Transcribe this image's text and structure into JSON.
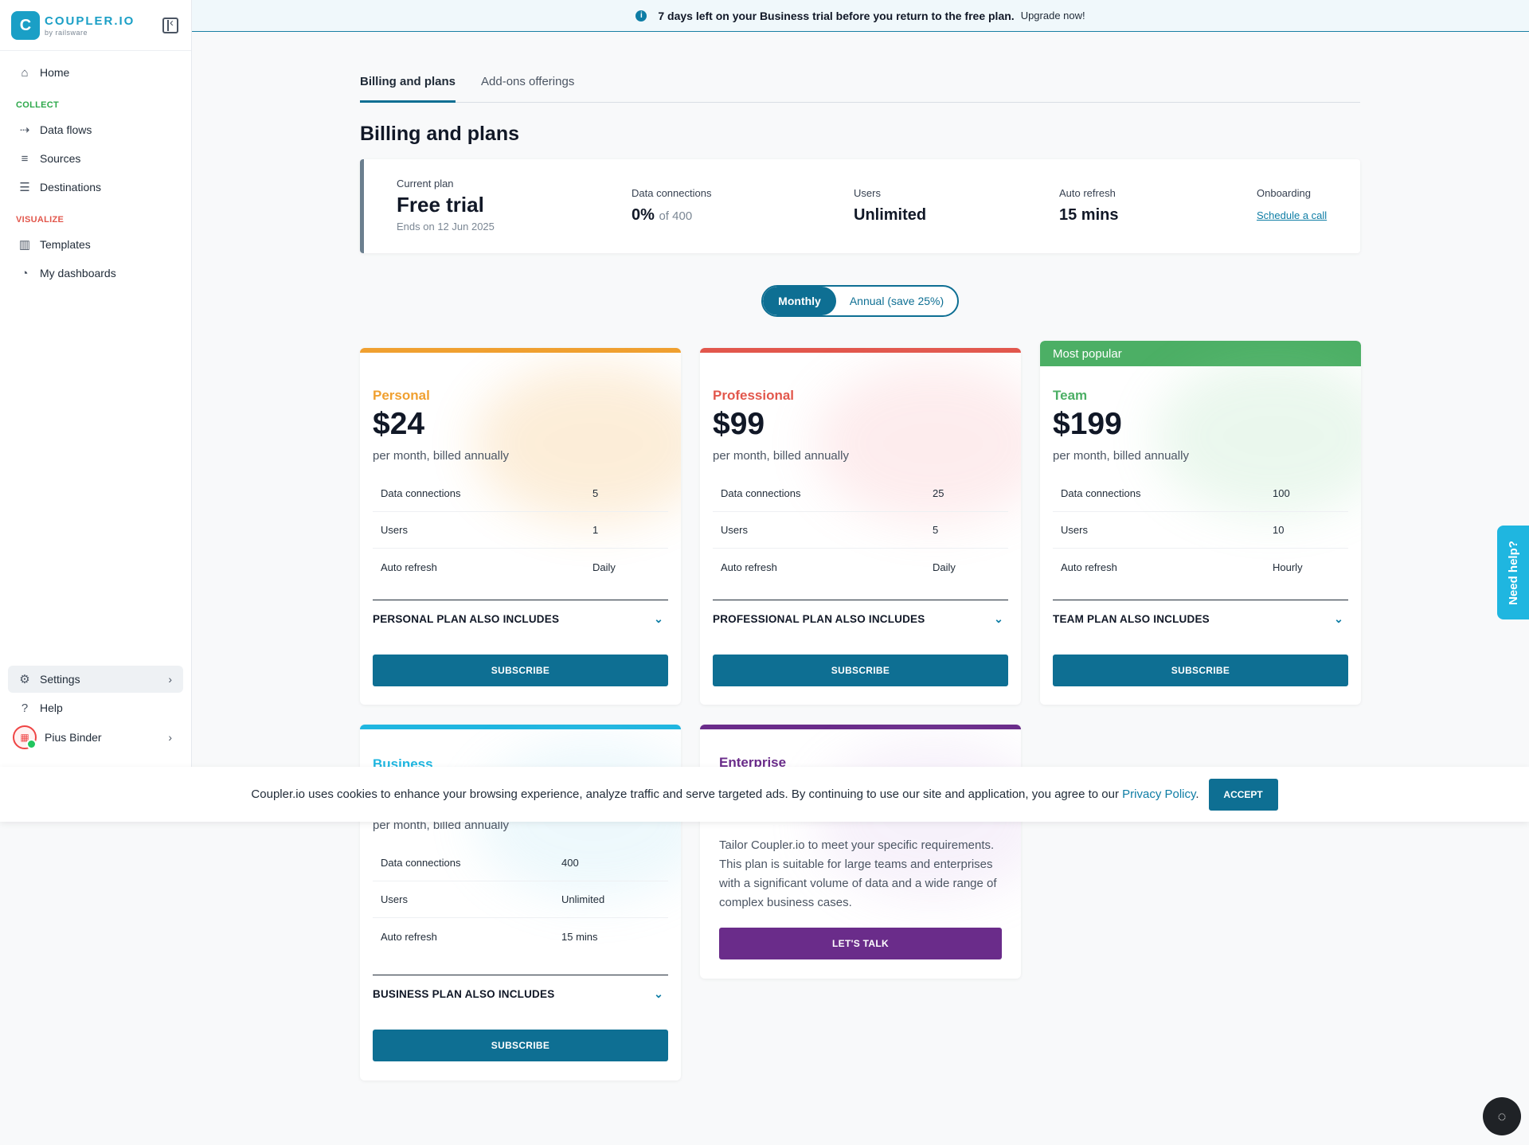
{
  "brand": {
    "logo_letter": "C",
    "name": "COUPLER.IO",
    "by": "by railsware"
  },
  "banner": {
    "icon": "info-icon",
    "message": "7 days left on your Business trial before you return to the free plan.",
    "cta": "Upgrade now!"
  },
  "sidebar": {
    "home": "Home",
    "collect_label": "COLLECT",
    "collect_items": [
      "Data flows",
      "Sources",
      "Destinations"
    ],
    "visualize_label": "VISUALIZE",
    "visualize_items": [
      "Templates",
      "My dashboards"
    ],
    "settings": "Settings",
    "help": "Help",
    "user": "Pius Binder"
  },
  "tabs": [
    "Billing and plans",
    "Add-ons offerings"
  ],
  "page_title": "Billing and plans",
  "current_plan": {
    "label": "Current plan",
    "name": "Free trial",
    "ends": "Ends on 12 Jun 2025",
    "data_connections_label": "Data connections",
    "data_connections_value": "0%",
    "data_connections_of": "of 400",
    "users_label": "Users",
    "users_value": "Unlimited",
    "auto_refresh_label": "Auto refresh",
    "auto_refresh_value": "15 mins",
    "onboarding_label": "Onboarding",
    "onboarding_link": "Schedule a call"
  },
  "toggle": {
    "monthly": "Monthly",
    "annual": "Annual (save 25%)"
  },
  "plans": {
    "personal": {
      "name": "Personal",
      "price": "$24",
      "billed": "per month, billed annually",
      "rows": [
        [
          "Data connections",
          "5"
        ],
        [
          "Users",
          "1"
        ],
        [
          "Auto refresh",
          "Daily"
        ]
      ],
      "includes": "PERSONAL PLAN ALSO INCLUDES",
      "button": "SUBSCRIBE",
      "color": "#f0a030"
    },
    "professional": {
      "name": "Professional",
      "price": "$99",
      "billed": "per month, billed annually",
      "rows": [
        [
          "Data connections",
          "25"
        ],
        [
          "Users",
          "5"
        ],
        [
          "Auto refresh",
          "Daily"
        ]
      ],
      "includes": "PROFESSIONAL PLAN ALSO INCLUDES",
      "button": "SUBSCRIBE",
      "color": "#e2574c"
    },
    "team": {
      "badge": "Most popular",
      "name": "Team",
      "price": "$199",
      "billed": "per month, billed annually",
      "rows": [
        [
          "Data connections",
          "100"
        ],
        [
          "Users",
          "10"
        ],
        [
          "Auto refresh",
          "Hourly"
        ]
      ],
      "includes": "TEAM PLAN ALSO INCLUDES",
      "button": "SUBSCRIBE",
      "color": "#4caf65"
    },
    "business": {
      "name": "Business",
      "billed": "per month, billed annually",
      "rows": [
        [
          "Data connections",
          "400"
        ],
        [
          "Users",
          "Unlimited"
        ],
        [
          "Auto refresh",
          "15 mins"
        ]
      ],
      "includes": "BUSINESS PLAN ALSO INCLUDES",
      "button": "SUBSCRIBE",
      "color": "#1fb6e0"
    },
    "enterprise": {
      "name": "Enterprise",
      "description": "Tailor Coupler.io to meet your specific requirements. This plan is suitable for large teams and enterprises with a significant volume of data and a wide range of complex business cases.",
      "button": "LET'S TALK",
      "color": "#6a2c8a"
    }
  },
  "cookie": {
    "text": "Coupler.io uses cookies to enhance your browsing experience, analyze traffic and serve targeted ads. By continuing to use our site and application, you agree to our",
    "link": "Privacy Policy",
    "period": ".",
    "accept": "ACCEPT"
  },
  "need_help": "Need help?",
  "colors": {
    "primary": "#0e6f93",
    "collect": "#2ca84a",
    "visualize": "#e2574c"
  }
}
